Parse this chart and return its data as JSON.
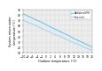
{
  "xlabel": "Outdoor temperature (°C)",
  "ylabel": "System return water\ntemperature (°C)",
  "line1_label": "Radiators/UFH",
  "line2_label": "Fan coils",
  "line1_color": "#6ec6f0",
  "line2_color": "#a0d8f5",
  "line1_x": [
    -10,
    -8,
    -6,
    -4,
    -2,
    0,
    2,
    4,
    6,
    8,
    10,
    12,
    14,
    16,
    18,
    20
  ],
  "line1_y": [
    82,
    78,
    74,
    70,
    66,
    62,
    57,
    53,
    49,
    45,
    41,
    36,
    32,
    28,
    24,
    20
  ],
  "line2_x": [
    -10,
    -8,
    -6,
    -4,
    -2,
    0,
    2,
    4,
    6,
    8,
    10,
    12,
    14,
    16,
    18,
    20
  ],
  "line2_y": [
    70,
    66,
    63,
    59,
    55,
    51,
    47,
    43,
    40,
    36,
    32,
    28,
    25,
    21,
    17,
    14
  ],
  "xlim": [
    -10,
    20
  ],
  "ylim": [
    10,
    90
  ],
  "xtick_step": 2,
  "yticks": [
    10,
    20,
    30,
    40,
    50,
    60,
    70,
    80,
    90
  ],
  "plot_bg": "#f5f5f5",
  "fig_bg": "#ffffff",
  "grid_color": "#cccccc",
  "grid_linewidth": 0.25,
  "linewidth": 0.8,
  "tick_fontsize": 2.2,
  "label_fontsize": 2.4,
  "legend_fontsize": 1.8
}
